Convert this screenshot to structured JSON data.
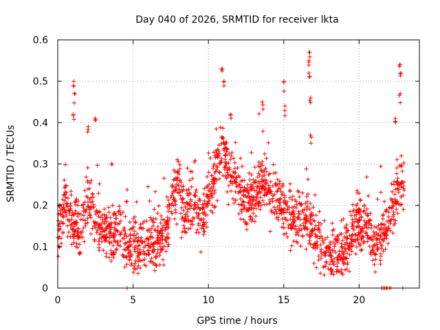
{
  "chart_data": {
    "type": "scatter",
    "title": "Day 040 of 2026, SRMTID for receiver lkta",
    "xlabel": "GPS time / hours",
    "ylabel": "SRMTID / TECUs",
    "xlim": [
      0,
      24
    ],
    "ylim": [
      0,
      0.6
    ],
    "x_ticks": [
      0,
      5,
      10,
      15,
      20
    ],
    "y_ticks": [
      0,
      0.1,
      0.2,
      0.3,
      0.4,
      0.5,
      0.6
    ],
    "x_tick_labels": [
      "0",
      "5",
      "10",
      "15",
      "20"
    ],
    "y_tick_labels": [
      "0",
      "0.1",
      "0.2",
      "0.3",
      "0.4",
      "0.5",
      "0.6"
    ],
    "grid": true,
    "marker": "+",
    "series": [
      {
        "name": "SRMTID",
        "color": "#ff0000",
        "profile_x": [
          0,
          0.3,
          0.5,
          0.8,
          1.0,
          1.2,
          1.5,
          1.8,
          2.0,
          2.3,
          2.6,
          3.0,
          3.5,
          4.0,
          4.5,
          5.0,
          5.5,
          6.0,
          6.5,
          7.0,
          7.3,
          7.6,
          8.0,
          8.5,
          9.0,
          9.5,
          10.0,
          10.3,
          10.6,
          11.0,
          11.3,
          11.6,
          12.0,
          12.5,
          13.0,
          13.5,
          14.0,
          14.5,
          15.0,
          15.5,
          16.0,
          16.5,
          17.0,
          17.5,
          18.0,
          18.5,
          19.0,
          19.3,
          19.6,
          20.0,
          20.3,
          20.6,
          21.0,
          21.5,
          22.0,
          22.3,
          22.6,
          23.0
        ],
        "profile_y": [
          0.14,
          0.17,
          0.22,
          0.17,
          0.15,
          0.16,
          0.13,
          0.17,
          0.21,
          0.19,
          0.15,
          0.14,
          0.13,
          0.15,
          0.11,
          0.1,
          0.1,
          0.12,
          0.11,
          0.12,
          0.14,
          0.22,
          0.24,
          0.18,
          0.2,
          0.16,
          0.22,
          0.26,
          0.3,
          0.34,
          0.28,
          0.26,
          0.24,
          0.2,
          0.22,
          0.26,
          0.24,
          0.22,
          0.2,
          0.17,
          0.17,
          0.18,
          0.13,
          0.1,
          0.09,
          0.08,
          0.07,
          0.1,
          0.14,
          0.16,
          0.14,
          0.16,
          0.1,
          0.13,
          0.16,
          0.2,
          0.25,
          0.24
        ],
        "spread": 0.045,
        "n_points": 1900,
        "spikes": [
          {
            "x": 1.05,
            "y": 0.5
          },
          {
            "x": 1.1,
            "y": 0.47
          },
          {
            "x": 1.05,
            "y": 0.42
          },
          {
            "x": 2.5,
            "y": 0.41
          },
          {
            "x": 2.0,
            "y": 0.39
          },
          {
            "x": 3.6,
            "y": 0.3
          },
          {
            "x": 10.9,
            "y": 0.53
          },
          {
            "x": 11.0,
            "y": 0.5
          },
          {
            "x": 11.5,
            "y": 0.42
          },
          {
            "x": 13.6,
            "y": 0.45
          },
          {
            "x": 15.0,
            "y": 0.5
          },
          {
            "x": 15.1,
            "y": 0.44
          },
          {
            "x": 16.7,
            "y": 0.57
          },
          {
            "x": 16.7,
            "y": 0.55
          },
          {
            "x": 16.7,
            "y": 0.52
          },
          {
            "x": 16.75,
            "y": 0.46
          },
          {
            "x": 16.8,
            "y": 0.37
          },
          {
            "x": 22.7,
            "y": 0.54
          },
          {
            "x": 22.75,
            "y": 0.52
          },
          {
            "x": 22.7,
            "y": 0.47
          },
          {
            "x": 22.4,
            "y": 0.41
          }
        ],
        "zero_points_x": [
          4.6,
          21.5,
          21.6,
          21.7,
          21.8,
          21.85,
          22.0,
          22.1,
          22.9
        ]
      }
    ]
  }
}
